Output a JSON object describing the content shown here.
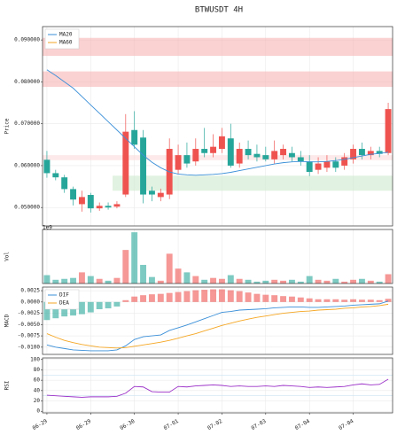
{
  "chart_data": [
    {
      "type": "candlestick",
      "title": "BTWUSDT  4H",
      "ylabel": "Price",
      "categories": [
        "06-29",
        null,
        null,
        null,
        null,
        "06-29",
        null,
        null,
        null,
        null,
        "06-30",
        null,
        null,
        null,
        null,
        "07-01",
        null,
        null,
        null,
        null,
        "07-02",
        null,
        null,
        null,
        null,
        "07-03",
        null,
        null,
        null,
        null,
        "07-04",
        null,
        null,
        null,
        null,
        "07-04",
        null,
        null,
        null,
        null
      ],
      "open": [
        0.0614,
        0.0582,
        0.0572,
        0.0544,
        0.0508,
        0.053,
        0.0498,
        0.0504,
        0.0502,
        0.0531,
        0.0685,
        0.0667,
        0.054,
        0.0525,
        0.0531,
        0.059,
        0.0625,
        0.061,
        0.064,
        0.063,
        0.064,
        0.0665,
        0.0605,
        0.064,
        0.0628,
        0.0625,
        0.0615,
        0.0625,
        0.063,
        0.062,
        0.061,
        0.059,
        0.0595,
        0.061,
        0.06,
        0.0615,
        0.064,
        0.0625,
        0.0635,
        0.063
      ],
      "high": [
        0.0635,
        0.059,
        0.0578,
        0.055,
        0.054,
        0.0535,
        0.0512,
        0.0512,
        0.0515,
        0.0723,
        0.073,
        0.0685,
        0.055,
        0.0545,
        0.0665,
        0.065,
        0.0655,
        0.0665,
        0.069,
        0.0675,
        0.069,
        0.07,
        0.0655,
        0.066,
        0.065,
        0.0645,
        0.066,
        0.065,
        0.0645,
        0.0635,
        0.0625,
        0.062,
        0.0625,
        0.062,
        0.063,
        0.065,
        0.0655,
        0.0645,
        0.0645,
        0.075
      ],
      "low": [
        0.0571,
        0.0565,
        0.0535,
        0.0505,
        0.049,
        0.0488,
        0.0492,
        0.0495,
        0.0498,
        0.0525,
        0.064,
        0.051,
        0.0515,
        0.0515,
        0.052,
        0.058,
        0.0595,
        0.06,
        0.062,
        0.062,
        0.063,
        0.0595,
        0.0595,
        0.0615,
        0.061,
        0.061,
        0.0605,
        0.0615,
        0.061,
        0.06,
        0.0575,
        0.058,
        0.0585,
        0.0585,
        0.059,
        0.0605,
        0.0615,
        0.0615,
        0.062,
        0.0625
      ],
      "close": [
        0.0582,
        0.0572,
        0.0544,
        0.0519,
        0.0525,
        0.0498,
        0.0504,
        0.05,
        0.0508,
        0.0681,
        0.065,
        0.0531,
        0.0531,
        0.0535,
        0.064,
        0.0625,
        0.0605,
        0.064,
        0.063,
        0.0645,
        0.067,
        0.06,
        0.064,
        0.0625,
        0.062,
        0.0615,
        0.0635,
        0.064,
        0.062,
        0.061,
        0.0585,
        0.0605,
        0.061,
        0.0595,
        0.062,
        0.064,
        0.0625,
        0.0635,
        0.0628,
        0.0735
      ],
      "up_color": "#ef5350",
      "down_color": "#26a69a",
      "series": [
        {
          "name": "MA20",
          "color": "#3a8fd8",
          "values": [
            0.0829,
            0.0815,
            0.08,
            0.0785,
            0.0765,
            0.0745,
            0.0725,
            0.0705,
            0.0685,
            0.0665,
            0.0645,
            0.0625,
            0.0608,
            0.0595,
            0.0585,
            0.058,
            0.0578,
            0.0577,
            0.0578,
            0.0579,
            0.0581,
            0.0584,
            0.0588,
            0.0592,
            0.0596,
            0.06,
            0.0604,
            0.0607,
            0.0609,
            0.061,
            0.0609,
            0.0609,
            0.061,
            0.0612,
            0.0615,
            0.0619,
            0.0623,
            0.0627,
            0.0629,
            0.0632
          ]
        },
        {
          "name": "MA60",
          "color": "#f5a623",
          "values": [
            null,
            null,
            null,
            null,
            null,
            null,
            null,
            null,
            null,
            null,
            null,
            null,
            null,
            null,
            null,
            null,
            null,
            null,
            null,
            null,
            null,
            null,
            null,
            null,
            null,
            null,
            null,
            null,
            null,
            null,
            null,
            null,
            null,
            null,
            null,
            null,
            null,
            null,
            null,
            null
          ]
        }
      ],
      "zones": [
        {
          "low": 0.0862,
          "high": 0.0905,
          "color": "#f8b4b4",
          "start": 0
        },
        {
          "low": 0.0788,
          "high": 0.0825,
          "color": "#f8b4b4",
          "start": 0
        },
        {
          "low": 0.0613,
          "high": 0.0625,
          "color": "#fbdada",
          "start": 0
        },
        {
          "low": 0.054,
          "high": 0.0576,
          "color": "#cfe9cf",
          "start": 8
        }
      ],
      "ylim": [
        0.0456,
        0.0932
      ],
      "yticks": [
        {
          "value": 0.05,
          "label": "0.050000"
        },
        {
          "value": 0.06,
          "label": "0.060000"
        },
        {
          "value": 0.07,
          "label": "0.070000"
        },
        {
          "value": 0.08,
          "label": "0.080000"
        },
        {
          "value": 0.09,
          "label": "0.090000"
        }
      ],
      "legend": "upper left",
      "grid": true
    },
    {
      "type": "bar",
      "ylabel": "Vol",
      "scale_label": "1e9",
      "values": [
        0.9,
        0.4,
        0.5,
        0.6,
        1.2,
        0.8,
        0.5,
        0.3,
        0.6,
        3.6,
        5.5,
        2.0,
        0.7,
        0.3,
        3.2,
        1.6,
        1.2,
        0.8,
        0.4,
        0.6,
        0.5,
        0.9,
        0.5,
        0.4,
        0.2,
        0.3,
        0.4,
        0.3,
        0.4,
        0.2,
        0.8,
        0.4,
        0.3,
        0.5,
        0.2,
        0.4,
        0.5,
        0.3,
        0.2,
        1.0
      ],
      "ylim": [
        0,
        5.8
      ],
      "grid": true
    },
    {
      "type": "macd",
      "ylabel": "MACD",
      "series": [
        {
          "name": "DIF",
          "color": "#3a8fd8",
          "values": [
            -0.0095,
            -0.01,
            -0.0103,
            -0.0106,
            -0.0107,
            -0.0108,
            -0.0108,
            -0.0108,
            -0.0106,
            -0.0097,
            -0.0083,
            -0.0077,
            -0.0075,
            -0.0073,
            -0.0063,
            -0.0057,
            -0.0051,
            -0.0044,
            -0.0037,
            -0.003,
            -0.0023,
            -0.0021,
            -0.0018,
            -0.0017,
            -0.0016,
            -0.0015,
            -0.0013,
            -0.0012,
            -0.0011,
            -0.0011,
            -0.0012,
            -0.0012,
            -0.0011,
            -0.001,
            -0.0009,
            -0.0007,
            -0.0006,
            -0.0005,
            -0.0004,
            0.0002
          ]
        },
        {
          "name": "DEA",
          "color": "#f5a623",
          "values": [
            -0.007,
            -0.0078,
            -0.0085,
            -0.009,
            -0.0094,
            -0.0097,
            -0.01,
            -0.0101,
            -0.0102,
            -0.0101,
            -0.0098,
            -0.0095,
            -0.0092,
            -0.0089,
            -0.0085,
            -0.008,
            -0.0075,
            -0.007,
            -0.0064,
            -0.0058,
            -0.0052,
            -0.0047,
            -0.0042,
            -0.0038,
            -0.0034,
            -0.0031,
            -0.0028,
            -0.0025,
            -0.0023,
            -0.0021,
            -0.002,
            -0.0018,
            -0.0017,
            -0.0016,
            -0.0014,
            -0.0013,
            -0.0011,
            -0.001,
            -0.0008,
            -0.0005
          ]
        }
      ],
      "histogram": [
        -0.004,
        -0.0036,
        -0.0032,
        -0.003,
        -0.0027,
        -0.0023,
        -0.0016,
        -0.0014,
        -0.001,
        0.0004,
        0.0012,
        0.0015,
        0.0017,
        0.0018,
        0.002,
        0.0022,
        0.0024,
        0.0026,
        0.0027,
        0.0028,
        0.0028,
        0.0026,
        0.0024,
        0.0021,
        0.0018,
        0.0016,
        0.0015,
        0.0013,
        0.0012,
        0.001,
        0.0008,
        0.0006,
        0.0006,
        0.0006,
        0.0005,
        0.0006,
        0.0005,
        0.0005,
        0.0004,
        0.0007
      ],
      "ylim": [
        -0.0116,
        0.0033
      ],
      "yticks": [
        {
          "value": -0.01,
          "label": "-0.0100"
        },
        {
          "value": -0.0075,
          "label": "-0.0075"
        },
        {
          "value": -0.005,
          "label": "-0.0050"
        },
        {
          "value": -0.0025,
          "label": "-0.0025"
        },
        {
          "value": 0,
          "label": "0.0000"
        },
        {
          "value": 0.0025,
          "label": "0.0025"
        }
      ],
      "legend": "upper left",
      "grid": true
    },
    {
      "type": "line",
      "ylabel": "RSI",
      "color": "#9b30c8",
      "values": [
        31,
        30,
        29,
        28,
        27,
        28,
        28,
        28,
        29,
        35,
        48,
        47,
        38,
        37,
        37,
        48,
        47,
        49,
        50,
        51,
        50,
        48,
        49,
        48,
        48,
        49,
        48,
        50,
        49,
        48,
        46,
        47,
        46,
        47,
        48,
        51,
        53,
        51,
        52,
        62
      ],
      "levels": [
        30,
        70
      ],
      "ylim": [
        -3,
        103
      ],
      "yticks": [
        0,
        20,
        40,
        60,
        80,
        100
      ],
      "grid": true
    }
  ]
}
